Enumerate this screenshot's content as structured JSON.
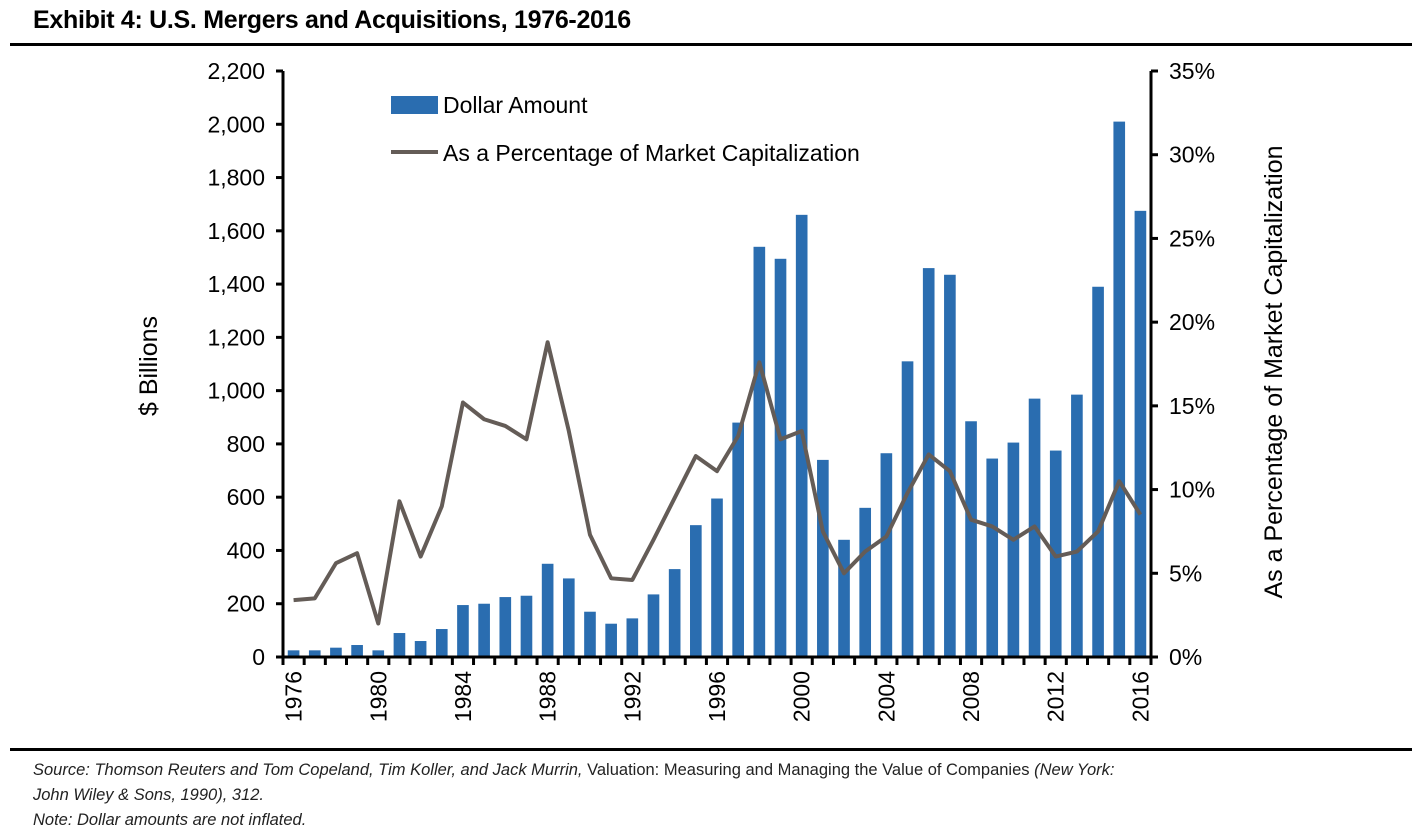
{
  "header": {
    "title": "Exhibit 4: U.S. Mergers and Acquisitions, 1976-2016"
  },
  "footer": {
    "source_prefix": "Source: Thomson Reuters and Tom Copeland, Tim Koller, and Jack Murrin, ",
    "source_book": "Valuation: Measuring and Managing the Value of Companies",
    "source_suffix_line1": " (New York:",
    "source_line2": "John Wiley & Sons, 1990), 312.",
    "note": "Note: Dollar amounts are not inflated."
  },
  "colors": {
    "bar": "#2a6db0",
    "line": "#645c57",
    "axis": "#000000"
  },
  "chart_data": {
    "type": "bar",
    "title": "Exhibit 4: U.S. Mergers and Acquisitions, 1976-2016",
    "xlabel": "",
    "ylabel": "$ Billions",
    "y2label": "As a Percentage of Market Capitalization",
    "ylim": [
      0,
      2200
    ],
    "y2lim": [
      0,
      35
    ],
    "yticks": [
      "0",
      "200",
      "400",
      "600",
      "800",
      "1,000",
      "1,200",
      "1,400",
      "1,600",
      "1,800",
      "2,000",
      "2,200"
    ],
    "y2ticks": [
      "0%",
      "5%",
      "10%",
      "15%",
      "20%",
      "25%",
      "30%",
      "35%"
    ],
    "xtick_labels": [
      "1976",
      "1980",
      "1984",
      "1988",
      "1992",
      "1996",
      "2000",
      "2004",
      "2008",
      "2012",
      "2016"
    ],
    "grid": false,
    "legend_position": "top-left",
    "categories": [
      1976,
      1977,
      1978,
      1979,
      1980,
      1981,
      1982,
      1983,
      1984,
      1985,
      1986,
      1987,
      1988,
      1989,
      1990,
      1991,
      1992,
      1993,
      1994,
      1995,
      1996,
      1997,
      1998,
      1999,
      2000,
      2001,
      2002,
      2003,
      2004,
      2005,
      2006,
      2007,
      2008,
      2009,
      2010,
      2011,
      2012,
      2013,
      2014,
      2015,
      2016
    ],
    "series": [
      {
        "name": "Dollar Amount",
        "type": "bar",
        "axis": "left",
        "values": [
          25,
          25,
          35,
          45,
          25,
          90,
          60,
          105,
          195,
          200,
          225,
          230,
          350,
          295,
          170,
          125,
          145,
          235,
          330,
          495,
          595,
          880,
          1540,
          1495,
          1660,
          740,
          440,
          560,
          765,
          1110,
          1460,
          1435,
          885,
          745,
          805,
          970,
          775,
          985,
          1390,
          2010,
          1675
        ]
      },
      {
        "name": "As a Percentage of Market Capitalization",
        "type": "line",
        "axis": "right",
        "values": [
          3.4,
          3.5,
          5.6,
          6.2,
          2.0,
          9.3,
          6.0,
          9.0,
          15.2,
          14.2,
          13.8,
          13.0,
          18.8,
          13.5,
          7.3,
          4.7,
          4.6,
          7.0,
          9.5,
          12.0,
          11.1,
          13.2,
          17.6,
          13.0,
          13.5,
          7.5,
          5.0,
          6.3,
          7.2,
          9.8,
          12.1,
          11.1,
          8.2,
          7.8,
          7.0,
          7.8,
          6.0,
          6.3,
          7.5,
          10.5,
          8.5
        ]
      }
    ]
  }
}
